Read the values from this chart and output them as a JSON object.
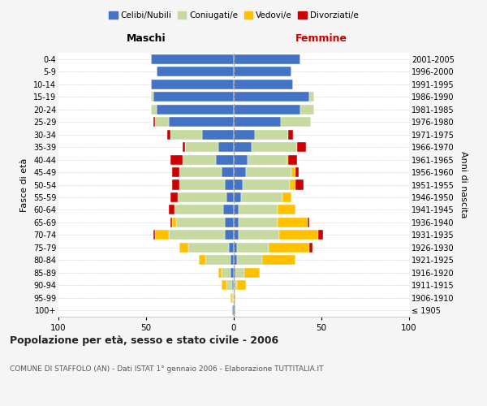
{
  "age_groups": [
    "100+",
    "95-99",
    "90-94",
    "85-89",
    "80-84",
    "75-79",
    "70-74",
    "65-69",
    "60-64",
    "55-59",
    "50-54",
    "45-49",
    "40-44",
    "35-39",
    "30-34",
    "25-29",
    "20-24",
    "15-19",
    "10-14",
    "5-9",
    "0-4"
  ],
  "birth_years": [
    "≤ 1905",
    "1906-1910",
    "1911-1915",
    "1916-1920",
    "1921-1925",
    "1926-1930",
    "1931-1935",
    "1936-1940",
    "1941-1945",
    "1946-1950",
    "1951-1955",
    "1956-1960",
    "1961-1965",
    "1966-1970",
    "1971-1975",
    "1976-1980",
    "1981-1985",
    "1986-1990",
    "1991-1995",
    "1996-2000",
    "2001-2005"
  ],
  "male": {
    "celibi": [
      1,
      0,
      1,
      2,
      2,
      3,
      5,
      5,
      6,
      4,
      5,
      7,
      10,
      9,
      18,
      37,
      44,
      46,
      47,
      44,
      47
    ],
    "coniugati": [
      0,
      1,
      3,
      5,
      14,
      23,
      32,
      28,
      28,
      28,
      26,
      24,
      19,
      19,
      18,
      8,
      3,
      1,
      0,
      0,
      0
    ],
    "vedovi": [
      0,
      1,
      3,
      2,
      4,
      5,
      8,
      2,
      0,
      0,
      0,
      0,
      0,
      0,
      0,
      0,
      0,
      0,
      0,
      0,
      0
    ],
    "divorziati": [
      0,
      0,
      0,
      0,
      0,
      0,
      1,
      1,
      3,
      4,
      4,
      4,
      7,
      1,
      2,
      1,
      0,
      0,
      0,
      0,
      0
    ]
  },
  "female": {
    "nubili": [
      1,
      0,
      0,
      1,
      2,
      2,
      3,
      3,
      3,
      4,
      5,
      7,
      8,
      10,
      12,
      27,
      38,
      43,
      34,
      33,
      38
    ],
    "coniugate": [
      0,
      0,
      2,
      5,
      14,
      18,
      23,
      22,
      22,
      24,
      27,
      26,
      22,
      26,
      19,
      17,
      8,
      3,
      0,
      0,
      0
    ],
    "vedove": [
      0,
      1,
      5,
      9,
      19,
      23,
      22,
      17,
      10,
      5,
      3,
      2,
      1,
      0,
      0,
      0,
      0,
      0,
      0,
      0,
      0
    ],
    "divorziate": [
      0,
      0,
      0,
      0,
      0,
      2,
      3,
      1,
      0,
      0,
      5,
      2,
      5,
      5,
      3,
      0,
      0,
      0,
      0,
      0,
      0
    ]
  },
  "colors": {
    "celibi": "#4472c4",
    "coniugati": "#c5d9a0",
    "vedovi": "#ffc000",
    "divorziati": "#cc0000"
  },
  "xlim": 100,
  "title": "Popolazione per età, sesso e stato civile - 2006",
  "subtitle": "COMUNE DI STAFFOLO (AN) - Dati ISTAT 1° gennaio 2006 - Elaborazione TUTTITALIA.IT",
  "ylabel_left": "Fasce di età",
  "ylabel_right": "Anni di nascita",
  "xlabel_left": "Maschi",
  "xlabel_right": "Femmine",
  "bg_color": "#f5f5f5",
  "plot_bg": "#ffffff"
}
